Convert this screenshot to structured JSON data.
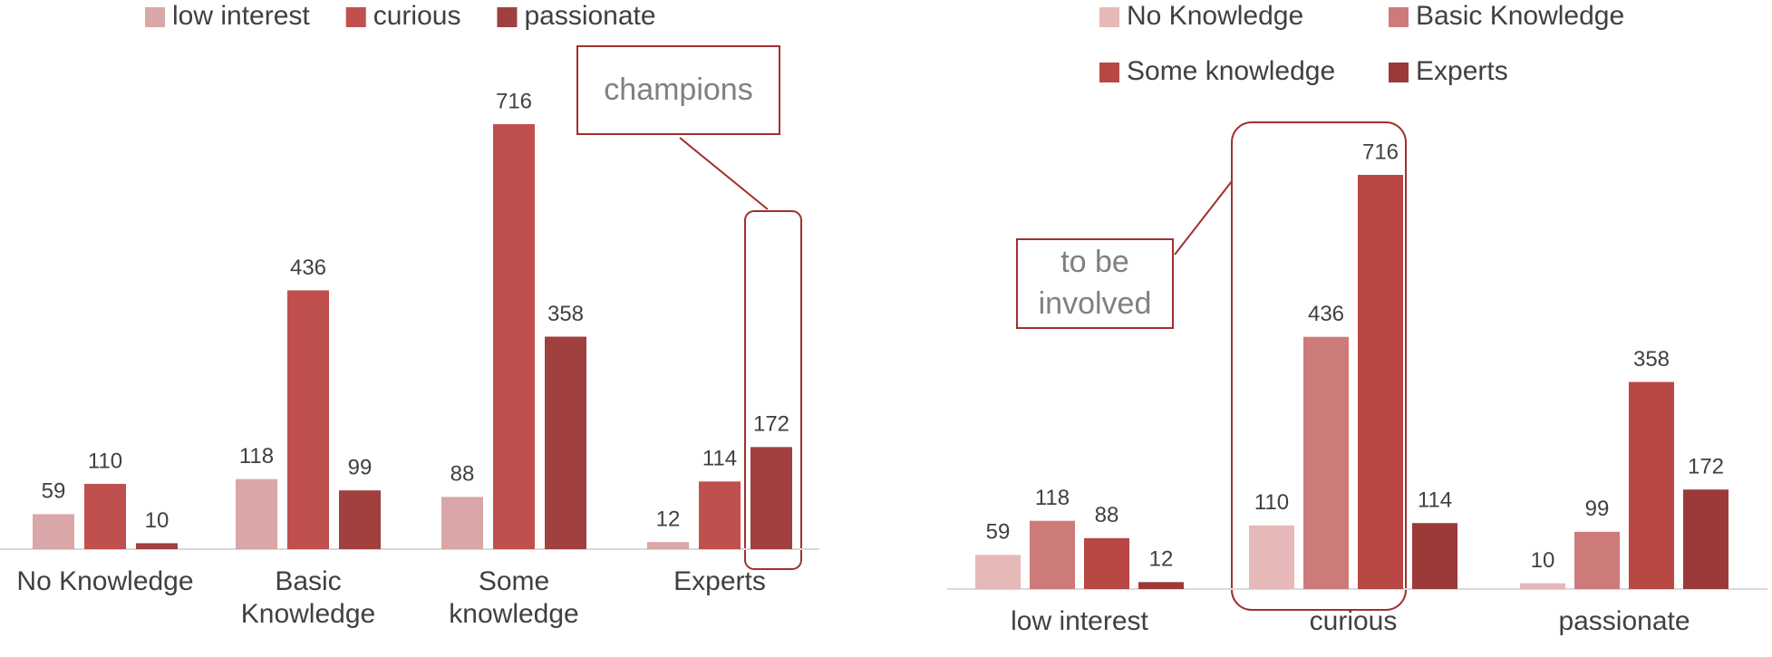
{
  "chart_data": [
    {
      "type": "bar",
      "categories": [
        "No Knowledge",
        "Basic Knowledge",
        "Some knowledge",
        "Experts"
      ],
      "series": [
        {
          "name": "low interest",
          "color": "#d9a7a7",
          "values": [
            59,
            118,
            88,
            12
          ]
        },
        {
          "name": "curious",
          "color": "#c0504d",
          "values": [
            110,
            436,
            716,
            114
          ]
        },
        {
          "name": "passionate",
          "color": "#a0403f",
          "values": [
            10,
            99,
            358,
            172
          ]
        }
      ],
      "annotations": [
        {
          "text": "champions"
        }
      ]
    },
    {
      "type": "bar",
      "categories": [
        "low interest",
        "curious",
        "passionate"
      ],
      "series": [
        {
          "name": "No Knowledge",
          "color": "#e6b9b8",
          "values": [
            59,
            110,
            10
          ]
        },
        {
          "name": "Basic Knowledge",
          "color": "#cd7b7a",
          "values": [
            118,
            436,
            99
          ]
        },
        {
          "name": "Some knowledge",
          "color": "#b94744",
          "values": [
            88,
            716,
            358
          ]
        },
        {
          "name": "Experts",
          "color": "#9b3a38",
          "values": [
            12,
            114,
            172
          ]
        }
      ],
      "annotations": [
        {
          "text": "to be involved"
        }
      ]
    }
  ]
}
